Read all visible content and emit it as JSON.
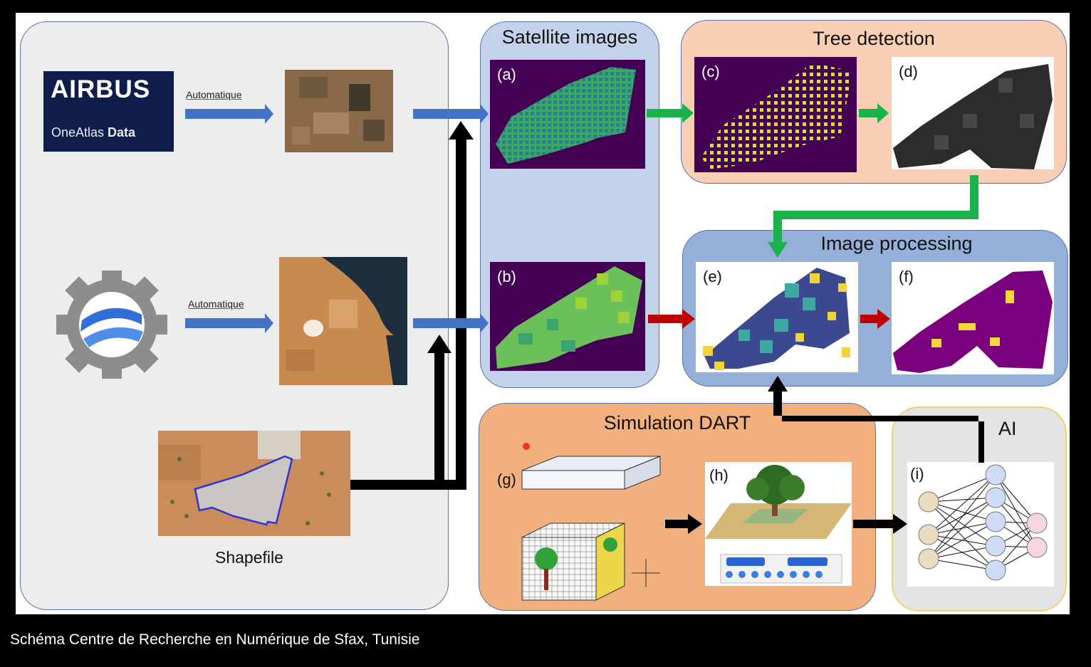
{
  "caption": "Schéma Centre de Recherche en Numérique de Sfax, Tunisie",
  "sources": {
    "airbus_logo": "AIRBUS",
    "airbus_product_1": "OneAtlas ",
    "airbus_product_2": "Data",
    "auto_label_1": "Automatique",
    "auto_label_2": "Automatique",
    "shapefile_label": "Shapefile"
  },
  "satellite": {
    "title": "Satellite images",
    "panel_a": "(a)",
    "panel_b": "(b)"
  },
  "tree_detection": {
    "title": "Tree detection",
    "panel_c": "(c)",
    "panel_d": "(d)"
  },
  "image_processing": {
    "title": "Image processing",
    "panel_e": "(e)",
    "panel_f": "(f)"
  },
  "simulation": {
    "title": "Simulation DART",
    "panel_g": "(g)",
    "panel_h": "(h)"
  },
  "ai": {
    "title": "AI",
    "panel_i": "(i)"
  },
  "colors": {
    "left_box": "#ededed",
    "satellite_box": "#c3d1ea",
    "tree_box": "#f8cfb3",
    "processing_box": "#94afd8",
    "simulation_box": "#f2b07e",
    "ai_box": "#e3e3e3",
    "blue_arrow": "#4472c4",
    "green_arrow": "#19b34a",
    "red_arrow": "#c00000",
    "viridis_purple": "#440154",
    "viridis_green": "#35b779",
    "viridis_yellow": "#fde725"
  },
  "icons": [
    "airbus-logo",
    "google-earth-engine-icon",
    "satellite-photo",
    "shapefile-map",
    "neural-network-icon",
    "tree-render"
  ]
}
